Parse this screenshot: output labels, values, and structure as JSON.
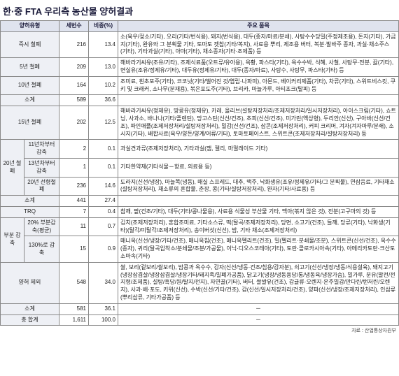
{
  "title": "한·중 FTA 우리측 농산물 양허결과",
  "source": "자료 : 산업통상자원부",
  "headers": {
    "type": "양허유형",
    "count": "세번수",
    "ratio": "비중(%)",
    "items": "주요 품목"
  },
  "rows": [
    {
      "type": "즉시 철폐",
      "count": "216",
      "ratio": "13.4",
      "desc": "소(육우/젖소/기타), 오리(기타/번식용), 돼지(번식용), 대두(종자/마료/분쇄), 사탕수수당밀(주정제조용), 돈지(기타), 가금지(기타), 완유와 그 분획물 기타, 토마토 켓찹(기타/복지), 사료용 뿌리, 제조용 버터, 복분·발바주 종자, 과실·채소주스(기타), 기타과실(기타), 아마(기타), 채소종자(기타·조제품) 등"
    },
    {
      "type": "5년 철폐",
      "count": "209",
      "ratio": "13.0",
      "desc": "해바라기씨유(조유/기타), 조제식료품(오트류/유아용), 옥황, 파스타(기타), 옥수수박, 식혜, 사철, 사탕무·전분, 끓(기타), 면실유(조유/정제유/기타), 대두유(정제유/기타), 대두(종자/마료), 사탕수, 사탕무, 파스타(기타) 등"
    },
    {
      "type": "10년 철폐",
      "count": "164",
      "ratio": "10.2",
      "desc": "조미료, 흰초포주(기타), 코코넛(기타/벌어진 것/엽립·나파미), 아몬드, 베이커리제품(기타), 차류(기타), 스위트비스킷, 쿠키 및 크래커, 소나무(분재용), 볶은포도주(기타), 브리카, 마늘가루, 아티초크(탈피) 등"
    },
    {
      "type": "소계",
      "count": "589",
      "ratio": "36.6",
      "desc": ""
    },
    {
      "type": "15년 철폐",
      "count": "202",
      "ratio": "12.5",
      "desc": "해바라기씨유(정제유), 땅콩유(정제유), 카레, 올리브(설탕저장처리/조제저장처리/일시저장처리), 아이스크림(기타), 쇼트닝, 사과소, 바나나(기타/플렌틴), 망고스틴(신선/건조), 초피(신선/건조), 미가린(액상형), 두리안(신선), 구아바(신선/건조), 파인애플(조제저장처리/설탕저장처리), 밀감(신선/건조), 삼콘(조제저장처리), 커피 크리머, 겨자(겨자마루/분쇄), 소시지(기타), 배합사료(육우/양돈/양계/어류/기타), 토마토페이스트, 스위트콘(조제저장처리/설탕저장처리) 등"
    },
    {
      "group": "20년 철폐",
      "sub": "11년차부터 감축",
      "count": "2",
      "ratio": "0.1",
      "desc": "과실견과류(조제저장처리), 기타과실(잼, 젤리, 마멀레이드 기타)"
    },
    {
      "sub": "13년차부터 감축",
      "count": "1",
      "ratio": "0.1",
      "desc": "기타한약재(기타식물－항료, 의료용 등)"
    },
    {
      "sub": "20년 선형철폐",
      "count": "236",
      "ratio": "14.6",
      "desc": "도라지(신선/냉장), 마늘쪽(냉동), 매실 스프레드, 대추, 맥주, 낙화생유(조유/정제유/기타/그 분획물), 연삼음료, 기타채소(설탕저장처리), 채소류의 혼합물, 춘장, 콩(기타/설탕저장처리), 완자(기타/사료용) 등"
    },
    {
      "type": "소계",
      "count": "441",
      "ratio": "27.4",
      "desc": ""
    },
    {
      "type": "TRQ",
      "count": "7",
      "ratio": "0.4",
      "desc": "참깨, 팥(건조/기타), 대두(기타/콩나물용), 사료용 식물성 부산물 기타, 맥아(볶지 않은 것), 전분(고구마의 것) 등"
    },
    {
      "group": "부분 감축",
      "sub": "20% 부분감축(평균)",
      "count": "11",
      "ratio": "0.7",
      "desc": "김치(조제저장처리), 혼합조미료, 기타소스류, 떡(탈곡/조제저장처리), 당면, 소고기(건조), 들깨, 당류(기타), 낙화생(기타)(탈각/미탈각/조제저장처리), 송이버섯(신선), 밤, 기타 채소(조제저장처리)"
    },
    {
      "sub": "130%로 감축",
      "count": "15",
      "ratio": "0.9",
      "desc": "매니옥(신선/냉장/기타/건조), 매니옥칩(건조), 매니옥펠리트(건조), 밀(펠리트·분쇄물/조분), 스위트콘(신선/건조), 옥수수(종자), 귀리(탈곡압착소/분쇄물/조분/가공물), 이닉·디오스코레아(기타), 토란·콜로카시아속(기타), 아메리카토란·크산토소마속(기타)"
    },
    {
      "type": "양허 제외",
      "count": "548",
      "ratio": "34.0",
      "desc": "쌀, 보리(겉보리/쌀보리), 밤콩과 옥수수, 감자(신선/냉동·건조/칩용/감자분), 쇠고기(신선/냉장/냉동/식용설육), 돼지고기(냉장삼겹살/냉장삼겹살/냉장기타/돼지족/밀폐가공품), 닭고기(냉장/냉동용당/통/냉동육/냉장가슴), 밀가루, 분유(발전/전지형/조제품), 설탕/흑당/원/탈지/전지), 자연꿀(기타), 버터, 쌀쌀유(건조), 감귤류·오렌지·온주밀감/만다린/탠저린/오렌지), 사과·배·포도, 키위(신선), 수박(신선/기타/건조), 감(신선/일시저장처리/건조), 양파(신선/냉장/조제저장처리), 인삼류(뿌리삼류, 기타가공품) 등"
    },
    {
      "type": "소계",
      "count": "581",
      "ratio": "36.1",
      "desc": ""
    },
    {
      "type": "총 합계",
      "count": "1,611",
      "ratio": "100.0",
      "desc": ""
    }
  ]
}
